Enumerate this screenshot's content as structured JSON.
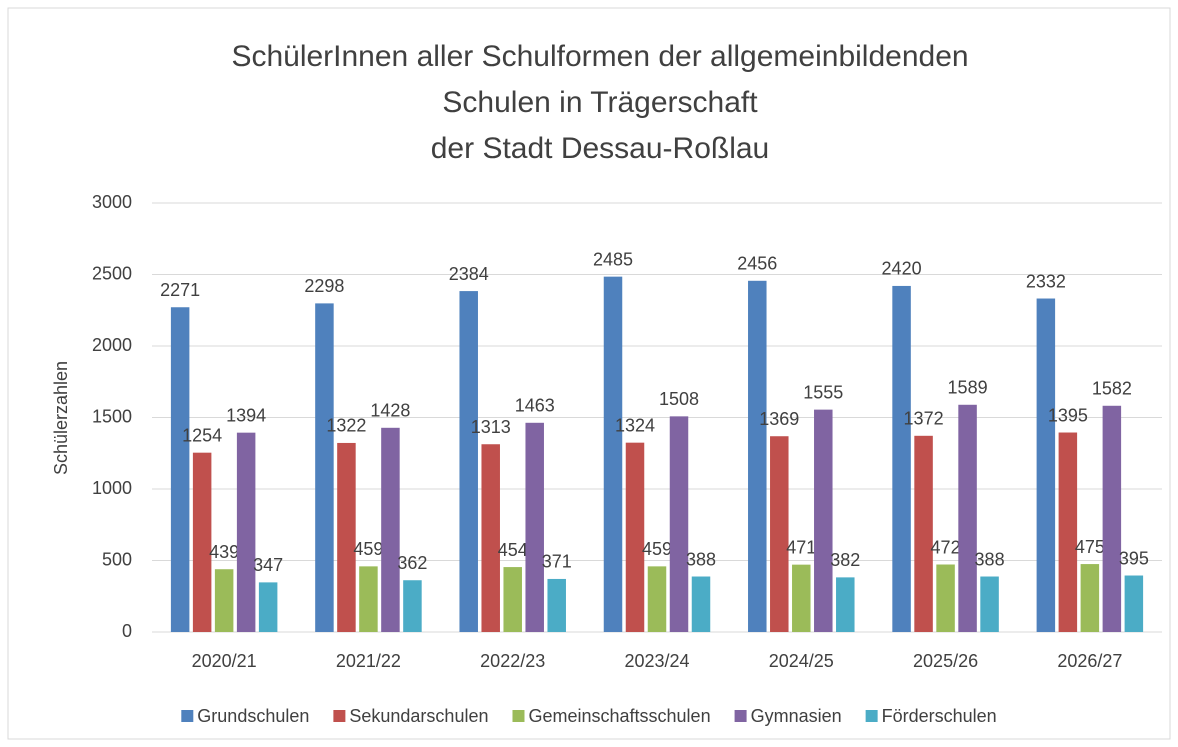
{
  "chart_data": {
    "type": "bar",
    "title": [
      "SchülerInnen aller Schulformen der allgemeinbildenden",
      "Schulen in Trägerschaft",
      "der Stadt Dessau-Roßlau"
    ],
    "y_label": "Schülerzahlen",
    "categories": [
      "2020/21",
      "2021/22",
      "2022/23",
      "2023/24",
      "2024/25",
      "2025/26",
      "2026/27"
    ],
    "series": [
      {
        "name": "Grundschulen",
        "color": "#4f81bd",
        "values": [
          2271,
          2298,
          2384,
          2485,
          2456,
          2420,
          2332
        ]
      },
      {
        "name": "Sekundarschulen",
        "color": "#c0504d",
        "values": [
          1254,
          1322,
          1313,
          1324,
          1369,
          1372,
          1395
        ]
      },
      {
        "name": "Gemeinschaftsschulen",
        "color": "#9bbb59",
        "values": [
          439,
          459,
          454,
          459,
          471,
          472,
          475
        ]
      },
      {
        "name": "Gymnasien",
        "color": "#8064a2",
        "values": [
          1394,
          1428,
          1463,
          1508,
          1555,
          1589,
          1582
        ]
      },
      {
        "name": "Förderschulen",
        "color": "#4bacc6",
        "values": [
          347,
          362,
          371,
          388,
          382,
          388,
          395
        ]
      }
    ],
    "ylim": [
      0,
      3000
    ],
    "yticks": [
      0,
      500,
      1000,
      1500,
      2000,
      2500,
      3000
    ],
    "grid": true,
    "legend": "bottom"
  }
}
